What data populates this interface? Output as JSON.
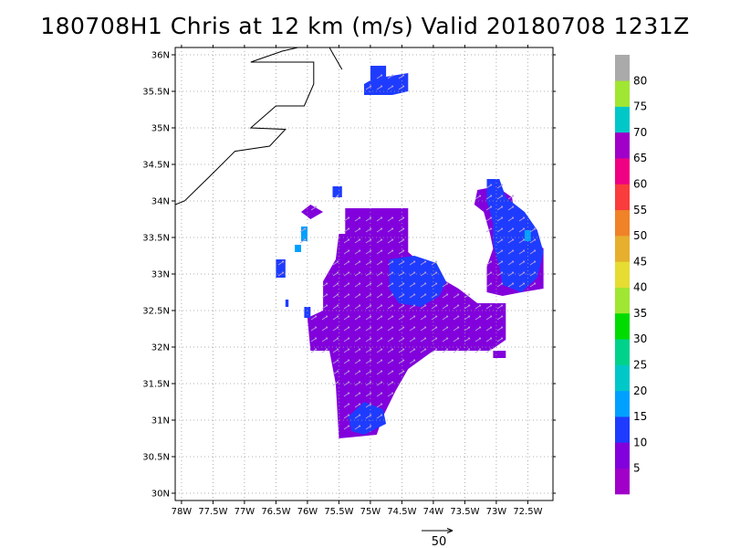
{
  "title": "180708H1 Chris at 12 km (m/s) Valid 20180708 1231Z",
  "map": {
    "lon_range": [
      -78.1,
      -72.1
    ],
    "lat_range": [
      29.9,
      36.1
    ],
    "x_ticks": [
      {
        "lon": -78.0,
        "label": "78W"
      },
      {
        "lon": -77.5,
        "label": "77.5W"
      },
      {
        "lon": -77.0,
        "label": "77W"
      },
      {
        "lon": -76.5,
        "label": "76.5W"
      },
      {
        "lon": -76.0,
        "label": "76W"
      },
      {
        "lon": -75.5,
        "label": "75.5W"
      },
      {
        "lon": -75.0,
        "label": "75W"
      },
      {
        "lon": -74.5,
        "label": "74.5W"
      },
      {
        "lon": -74.0,
        "label": "74W"
      },
      {
        "lon": -73.5,
        "label": "73.5W"
      },
      {
        "lon": -73.0,
        "label": "73W"
      },
      {
        "lon": -72.5,
        "label": "72.5W"
      }
    ],
    "y_ticks": [
      {
        "lat": 36.0,
        "label": "36N"
      },
      {
        "lat": 35.5,
        "label": "35.5N"
      },
      {
        "lat": 35.0,
        "label": "35N"
      },
      {
        "lat": 34.5,
        "label": "34.5N"
      },
      {
        "lat": 34.0,
        "label": "34N"
      },
      {
        "lat": 33.5,
        "label": "33.5N"
      },
      {
        "lat": 33.0,
        "label": "33N"
      },
      {
        "lat": 32.5,
        "label": "32.5N"
      },
      {
        "lat": 32.0,
        "label": "32N"
      },
      {
        "lat": 31.5,
        "label": "31.5N"
      },
      {
        "lat": 31.0,
        "label": "31N"
      },
      {
        "lat": 30.5,
        "label": "30.5N"
      },
      {
        "lat": 30.0,
        "label": "30N"
      }
    ],
    "grid": "dotted",
    "coastline": [
      [
        -78.1,
        33.95
      ],
      [
        -77.95,
        34.0
      ],
      [
        -77.5,
        34.38
      ],
      [
        -77.15,
        34.68
      ],
      [
        -76.6,
        34.75
      ],
      [
        -76.35,
        34.98
      ],
      [
        -76.9,
        35.0
      ],
      [
        -76.5,
        35.3
      ],
      [
        -76.05,
        35.3
      ],
      [
        -75.9,
        35.6
      ],
      [
        -75.9,
        35.9
      ],
      [
        -76.9,
        35.9
      ],
      [
        -76.4,
        36.05
      ],
      [
        -76.15,
        36.1
      ]
    ],
    "coastline_2": [
      [
        -75.65,
        36.1
      ],
      [
        -75.45,
        35.8
      ]
    ]
  },
  "wind_field": {
    "units": "m/s",
    "regions": [
      {
        "speed": 6,
        "polygon": [
          [
            -75.4,
            33.9
          ],
          [
            -74.4,
            33.9
          ],
          [
            -74.4,
            33.3
          ],
          [
            -74.0,
            33.0
          ],
          [
            -73.6,
            32.8
          ],
          [
            -73.3,
            32.6
          ],
          [
            -72.85,
            32.6
          ],
          [
            -72.85,
            32.1
          ],
          [
            -73.1,
            31.95
          ],
          [
            -74.0,
            31.95
          ],
          [
            -74.4,
            31.7
          ],
          [
            -74.6,
            31.4
          ],
          [
            -74.8,
            31.05
          ],
          [
            -74.9,
            30.8
          ],
          [
            -75.5,
            30.75
          ],
          [
            -75.55,
            31.5
          ],
          [
            -75.65,
            31.95
          ],
          [
            -75.95,
            31.95
          ],
          [
            -76.0,
            32.4
          ],
          [
            -75.75,
            32.5
          ],
          [
            -75.75,
            32.9
          ],
          [
            -75.55,
            33.2
          ],
          [
            -75.5,
            33.55
          ],
          [
            -75.4,
            33.55
          ]
        ]
      },
      {
        "speed": 6,
        "polygon": [
          [
            -73.3,
            34.15
          ],
          [
            -73.0,
            34.2
          ],
          [
            -72.75,
            34.05
          ],
          [
            -72.7,
            33.75
          ],
          [
            -72.6,
            33.55
          ],
          [
            -72.4,
            33.45
          ],
          [
            -72.25,
            33.35
          ],
          [
            -72.25,
            32.8
          ],
          [
            -72.6,
            32.75
          ],
          [
            -72.9,
            32.7
          ],
          [
            -73.15,
            32.75
          ],
          [
            -73.15,
            33.1
          ],
          [
            -73.05,
            33.35
          ],
          [
            -73.1,
            33.55
          ],
          [
            -73.2,
            33.85
          ],
          [
            -73.35,
            33.95
          ]
        ]
      },
      {
        "speed": 6,
        "polygon": [
          [
            -76.1,
            33.85
          ],
          [
            -75.95,
            33.95
          ],
          [
            -75.75,
            33.85
          ],
          [
            -75.95,
            33.75
          ]
        ]
      },
      {
        "speed": 6,
        "polygon": [
          [
            -73.05,
            31.95
          ],
          [
            -72.85,
            31.95
          ],
          [
            -72.85,
            31.85
          ],
          [
            -73.05,
            31.85
          ]
        ]
      },
      {
        "speed": 12,
        "polygon": [
          [
            -75.0,
            35.85
          ],
          [
            -74.75,
            35.85
          ],
          [
            -74.75,
            35.7
          ],
          [
            -74.4,
            35.75
          ],
          [
            -74.4,
            35.5
          ],
          [
            -74.65,
            35.45
          ],
          [
            -75.1,
            35.45
          ],
          [
            -75.1,
            35.6
          ],
          [
            -75.0,
            35.65
          ]
        ]
      },
      {
        "speed": 12,
        "polygon": [
          [
            -74.7,
            33.2
          ],
          [
            -74.3,
            33.25
          ],
          [
            -73.95,
            33.15
          ],
          [
            -73.8,
            32.9
          ],
          [
            -73.9,
            32.7
          ],
          [
            -74.2,
            32.55
          ],
          [
            -74.55,
            32.6
          ],
          [
            -74.7,
            32.8
          ]
        ]
      },
      {
        "speed": 12,
        "polygon": [
          [
            -73.15,
            34.3
          ],
          [
            -72.95,
            34.3
          ],
          [
            -72.85,
            34.05
          ],
          [
            -72.55,
            33.85
          ],
          [
            -72.35,
            33.6
          ],
          [
            -72.25,
            33.3
          ],
          [
            -72.35,
            32.95
          ],
          [
            -72.6,
            32.75
          ],
          [
            -72.9,
            32.85
          ],
          [
            -72.95,
            33.1
          ],
          [
            -73.05,
            33.4
          ],
          [
            -73.05,
            33.7
          ],
          [
            -73.15,
            34.0
          ]
        ]
      },
      {
        "speed": 12,
        "polygon": [
          [
            -75.1,
            31.25
          ],
          [
            -74.8,
            31.15
          ],
          [
            -74.75,
            30.95
          ],
          [
            -75.1,
            30.8
          ],
          [
            -75.3,
            30.85
          ],
          [
            -75.35,
            31.05
          ]
        ]
      },
      {
        "speed": 12,
        "polygon": [
          [
            -76.5,
            33.2
          ],
          [
            -76.35,
            33.2
          ],
          [
            -76.35,
            32.95
          ],
          [
            -76.5,
            32.95
          ]
        ]
      },
      {
        "speed": 12,
        "polygon": [
          [
            -76.05,
            32.55
          ],
          [
            -75.95,
            32.55
          ],
          [
            -75.95,
            32.4
          ],
          [
            -76.05,
            32.4
          ]
        ]
      },
      {
        "speed": 12,
        "polygon": [
          [
            -75.6,
            34.2
          ],
          [
            -75.45,
            34.2
          ],
          [
            -75.45,
            34.05
          ],
          [
            -75.6,
            34.05
          ]
        ]
      },
      {
        "speed": 12,
        "polygon": [
          [
            -76.35,
            32.65
          ],
          [
            -76.3,
            32.65
          ],
          [
            -76.3,
            32.55
          ],
          [
            -76.35,
            32.55
          ]
        ]
      },
      {
        "speed": 17,
        "polygon": [
          [
            -76.1,
            33.65
          ],
          [
            -76.0,
            33.65
          ],
          [
            -76.0,
            33.45
          ],
          [
            -76.1,
            33.45
          ]
        ]
      },
      {
        "speed": 17,
        "polygon": [
          [
            -72.55,
            33.6
          ],
          [
            -72.45,
            33.6
          ],
          [
            -72.45,
            33.45
          ],
          [
            -72.55,
            33.45
          ]
        ]
      },
      {
        "speed": 17,
        "polygon": [
          [
            -76.2,
            33.4
          ],
          [
            -76.1,
            33.4
          ],
          [
            -76.1,
            33.3
          ],
          [
            -76.2,
            33.3
          ]
        ]
      }
    ],
    "reference_vector": {
      "value": 50,
      "label": "50"
    }
  },
  "colorbar": {
    "colors": [
      "#a000c8",
      "#8200dc",
      "#1e3cff",
      "#00a0ff",
      "#00c8c8",
      "#00d28c",
      "#00dc00",
      "#a0e632",
      "#e6dc32",
      "#e6af2d",
      "#f08228",
      "#fa3c3c",
      "#f00082",
      "#a000c8",
      "#00c8c8",
      "#a0e632",
      "#aaaaaa"
    ],
    "labels": [
      "5",
      "10",
      "15",
      "20",
      "25",
      "30",
      "35",
      "40",
      "45",
      "50",
      "55",
      "60",
      "65",
      "70",
      "75",
      "80"
    ]
  }
}
